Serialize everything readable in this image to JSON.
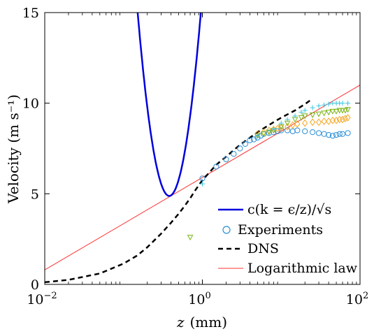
{
  "chart_data": {
    "type": "line",
    "xscale": "log",
    "xlim": [
      0.01,
      100
    ],
    "ylim": [
      0,
      15
    ],
    "xlabel": "z (mm)",
    "xlabel_var": "z",
    "xlabel_unit": "(mm)",
    "ylabel": "Velocity (m s⁻¹)",
    "xticks": [
      {
        "value": 0.01,
        "base": "10",
        "exp": "−2"
      },
      {
        "value": 1,
        "base": "10",
        "exp": "0"
      },
      {
        "value": 100,
        "base": "10",
        "exp": "2"
      }
    ],
    "yticks": [
      0,
      5,
      10,
      15
    ],
    "legend": {
      "placement": "bottom-right",
      "entries": [
        {
          "label": "c(k = ϵ/z)/√s",
          "style": "line",
          "color": "#0000dd"
        },
        {
          "label": "Experiments",
          "style": "circle",
          "color": "#2b8fd6"
        },
        {
          "label": "DNS",
          "style": "dashed",
          "color": "#000000"
        },
        {
          "label": "Logarithmic law",
          "style": "line",
          "color": "#ff3030"
        }
      ]
    },
    "series": [
      {
        "name": "c(k = ϵ/z)/√s",
        "color": "#0000dd",
        "z0": 0.38,
        "v0": 4.88,
        "a": 6.3
      },
      {
        "name": "DNS",
        "color": "#000000",
        "x": [
          0.01,
          0.02,
          0.05,
          0.1,
          0.15,
          0.2,
          0.3,
          0.4,
          0.5,
          0.6,
          0.7,
          0.8,
          1.0,
          1.5,
          2,
          3,
          5,
          8,
          10,
          15,
          20,
          25
        ],
        "y": [
          0.12,
          0.25,
          0.6,
          1.15,
          1.6,
          2.05,
          2.8,
          3.4,
          3.9,
          4.35,
          4.75,
          5.15,
          5.75,
          6.6,
          7.05,
          7.7,
          8.4,
          8.95,
          9.2,
          9.6,
          9.95,
          10.25
        ]
      },
      {
        "name": "Logarithmic law",
        "color": "#ff3030",
        "x": [
          0.01,
          100
        ],
        "y": [
          0.8,
          11.0
        ]
      },
      {
        "name": "Experiments",
        "marker": "circle",
        "color": "#2b8fd6",
        "x": [
          1.0,
          1.5,
          2.0,
          2.5,
          3.0,
          3.5,
          4.0,
          4.5,
          5.0,
          5.5,
          6.0,
          7.0,
          8.0,
          9.0,
          10.0,
          12.0,
          14.0,
          16.0,
          20.0,
          25.0,
          30.0,
          35.0,
          40.0,
          45.0,
          50.0,
          55.0,
          60.0,
          70.0
        ],
        "y": [
          5.85,
          6.5,
          6.9,
          7.2,
          7.5,
          7.75,
          7.95,
          8.0,
          8.1,
          8.2,
          8.3,
          8.35,
          8.4,
          8.45,
          8.5,
          8.5,
          8.45,
          8.5,
          8.45,
          8.4,
          8.35,
          8.3,
          8.25,
          8.2,
          8.25,
          8.3,
          8.3,
          8.35
        ]
      },
      {
        "name": "Experiments (diamonds)",
        "marker": "diamond",
        "color": "#f5a623",
        "x": [
          5.0,
          6.0,
          7.0,
          8.0,
          9.0,
          10.0,
          12.0,
          14.0,
          16.0,
          20.0,
          25.0,
          30.0,
          35.0,
          40.0,
          45.0,
          50.0,
          55.0,
          60.0,
          65.0,
          70.0
        ],
        "y": [
          8.3,
          8.4,
          8.5,
          8.55,
          8.6,
          8.65,
          8.7,
          8.8,
          8.85,
          8.9,
          8.95,
          8.95,
          9.0,
          9.0,
          9.05,
          9.05,
          9.1,
          9.1,
          9.15,
          9.2
        ]
      },
      {
        "name": "Experiments (triangles)",
        "marker": "triangle-down",
        "color": "#7ab317",
        "x": [
          0.7,
          5.0,
          6.0,
          7.0,
          8.0,
          10.0,
          12.0,
          15.0,
          18.0,
          20.0,
          25.0,
          30.0,
          35.0,
          40.0,
          45.0,
          50.0,
          55.0,
          60.0,
          65.0,
          70.0
        ],
        "y": [
          2.6,
          8.2,
          8.3,
          8.4,
          8.5,
          8.7,
          8.9,
          9.1,
          9.2,
          9.3,
          9.35,
          9.4,
          9.45,
          9.5,
          9.55,
          9.55,
          9.6,
          9.6,
          9.6,
          9.65
        ]
      },
      {
        "name": "Experiments (pluses)",
        "marker": "plus",
        "color": "#3ec6e0",
        "x": [
          1.0,
          5.0,
          8.0,
          10.0,
          12.0,
          15.0,
          18.0,
          20.0,
          25.0,
          30.0,
          35.0,
          40.0,
          45.0,
          50.0,
          55.0,
          60.0,
          70.0
        ],
        "y": [
          5.55,
          8.2,
          8.6,
          8.9,
          9.1,
          9.3,
          9.5,
          9.6,
          9.75,
          9.85,
          9.9,
          9.95,
          10.0,
          10.0,
          10.0,
          10.0,
          10.0
        ]
      }
    ]
  }
}
